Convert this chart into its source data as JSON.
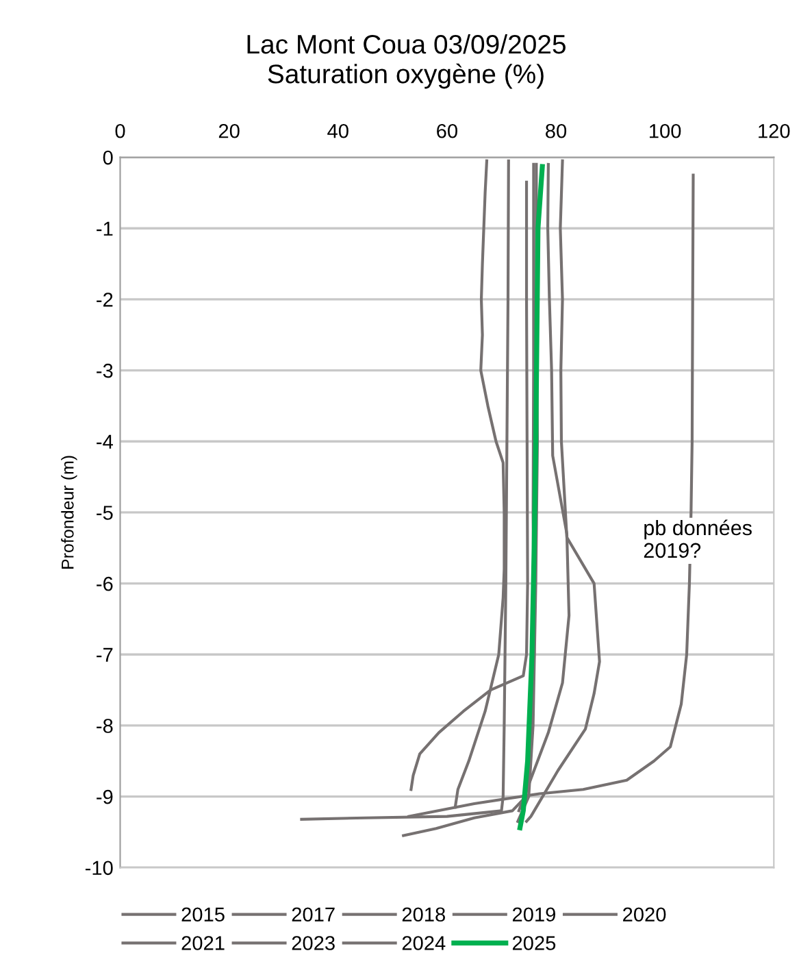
{
  "chart_data": {
    "type": "line",
    "title": "Lac Mont Coua 03/09/2025",
    "subtitle": "Saturation oxygène (%)",
    "ylabel": "Profondeur (m)",
    "xlim": [
      0,
      120
    ],
    "xticks": [
      0,
      20,
      40,
      60,
      80,
      100,
      120
    ],
    "ylim": [
      -10,
      0
    ],
    "yticks": [
      -10,
      -9,
      -8,
      -7,
      -6,
      -5,
      -4,
      -3,
      -2,
      -1,
      0
    ],
    "grid": "y",
    "legend": "bottom",
    "line_style": "solid",
    "marker": "none",
    "annotations": [
      "pb données\n2019?"
    ],
    "series": [
      {
        "name": "2015",
        "color": "#767171",
        "x": [
          67.3,
          67,
          66.5,
          66.3,
          66.5,
          66.2,
          67.5,
          69,
          70.3,
          70.5,
          70.5,
          70.3,
          69.5,
          67,
          64,
          62,
          61.5
        ],
        "values": [
          -0.05,
          -0.5,
          -1.5,
          -2,
          -2.5,
          -3,
          -3.5,
          -4,
          -4.3,
          -5,
          -5.8,
          -6.2,
          -7,
          -7.8,
          -8.5,
          -8.9,
          -9.15
        ]
      },
      {
        "name": "2017",
        "color": "#767171",
        "x": [
          71.3,
          71.2,
          71,
          70.8,
          70.5,
          70.3,
          70,
          60,
          45,
          33.3
        ],
        "values": [
          -0.05,
          -2,
          -4,
          -6,
          -8,
          -9,
          -9.2,
          -9.28,
          -9.3,
          -9.32
        ]
      },
      {
        "name": "2018",
        "color": "#767171",
        "x": [
          74.6,
          74.6,
          74.7,
          74.8,
          74.6,
          74,
          68,
          63,
          58.5,
          55,
          53.8,
          53.4
        ],
        "values": [
          -0.35,
          -2,
          -4,
          -6,
          -7,
          -7.3,
          -7.5,
          -7.8,
          -8.1,
          -8.4,
          -8.7,
          -8.9
        ]
      },
      {
        "name": "2019",
        "color": "#767171",
        "x": [
          105.2,
          105.1,
          105,
          104.8,
          104.5,
          104,
          103,
          101,
          98,
          93,
          85,
          77,
          65,
          53
        ],
        "values": [
          -0.25,
          -2,
          -4,
          -5,
          -6,
          -7,
          -7.7,
          -8.3,
          -8.5,
          -8.77,
          -8.9,
          -8.96,
          -9.1,
          -9.28
        ]
      },
      {
        "name": "2020",
        "color": "#767171",
        "x": [
          81.2,
          80.8,
          81.2,
          80.9,
          81,
          82,
          87,
          88,
          87,
          85.4,
          80.4,
          75.4,
          74.6
        ],
        "values": [
          -0.05,
          -1,
          -2,
          -3,
          -4,
          -5.35,
          -6,
          -7.1,
          -7.55,
          -8.05,
          -8.63,
          -9.28,
          -9.35
        ]
      },
      {
        "name": "2021",
        "color": "#767171",
        "x": [
          78.6,
          78.5,
          78.8,
          79.2,
          79.4,
          82,
          82.4,
          81.2,
          78.6,
          75.4,
          73.2
        ],
        "values": [
          -0.1,
          -1,
          -2,
          -3,
          -4.2,
          -5.3,
          -6.45,
          -7.4,
          -8.1,
          -8.75,
          -9.2
        ]
      },
      {
        "name": "2023",
        "color": "#767171",
        "x": [
          75.9,
          75.9,
          75.8,
          76,
          75.5,
          74.5,
          72,
          65,
          58,
          52
        ],
        "values": [
          -0.1,
          -3,
          -5,
          -7,
          -8,
          -9,
          -9.2,
          -9.3,
          -9.45,
          -9.55
        ]
      },
      {
        "name": "2024",
        "color": "#767171",
        "x": [
          76.4,
          76.4,
          76.6,
          76.3,
          75.8,
          75,
          73
        ],
        "values": [
          -0.1,
          -2,
          -4,
          -6,
          -8,
          -9,
          -9.35
        ]
      },
      {
        "name": "2025",
        "color": "#00b050",
        "x": [
          77.5,
          76.7,
          76.3,
          76,
          75.6,
          74.8,
          74,
          73.4
        ],
        "values": [
          -0.13,
          -1,
          -4,
          -5.5,
          -7,
          -8.5,
          -9.2,
          -9.44
        ]
      }
    ]
  }
}
